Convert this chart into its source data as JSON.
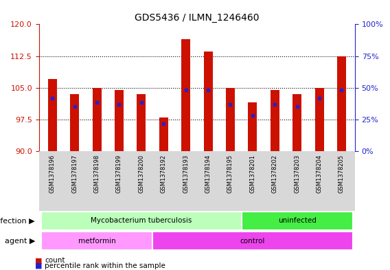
{
  "title": "GDS5436 / ILMN_1246460",
  "samples": [
    "GSM1378196",
    "GSM1378197",
    "GSM1378198",
    "GSM1378199",
    "GSM1378200",
    "GSM1378192",
    "GSM1378193",
    "GSM1378194",
    "GSM1378195",
    "GSM1378201",
    "GSM1378202",
    "GSM1378203",
    "GSM1378204",
    "GSM1378205"
  ],
  "bar_heights": [
    107.0,
    103.5,
    105.0,
    104.5,
    103.5,
    98.0,
    116.5,
    113.5,
    105.0,
    101.5,
    104.5,
    103.5,
    105.0,
    112.5
  ],
  "blue_markers": [
    102.5,
    100.5,
    101.5,
    101.0,
    101.5,
    96.5,
    104.5,
    104.5,
    101.0,
    98.5,
    101.0,
    100.5,
    102.5,
    104.5
  ],
  "ymin": 90,
  "ymax": 120,
  "yticks_left": [
    90,
    97.5,
    105,
    112.5,
    120
  ],
  "bar_color": "#cc1100",
  "blue_color": "#2222cc",
  "infection_groups": [
    {
      "label": "Mycobacterium tuberculosis",
      "start": 0,
      "end": 8,
      "color": "#bbffbb"
    },
    {
      "label": "uninfected",
      "start": 9,
      "end": 13,
      "color": "#44ee44"
    }
  ],
  "agent_groups": [
    {
      "label": "metformin",
      "start": 0,
      "end": 4,
      "color": "#ff99ff"
    },
    {
      "label": "control",
      "start": 5,
      "end": 13,
      "color": "#ee44ee"
    }
  ],
  "infection_label": "infection",
  "agent_label": "agent",
  "legend_count_color": "#cc1100",
  "legend_percentile_color": "#2222cc",
  "tick_label_color_left": "#cc1100",
  "tick_label_color_right": "#2222cc",
  "bar_width": 0.4,
  "xlabel_color": "#555555"
}
